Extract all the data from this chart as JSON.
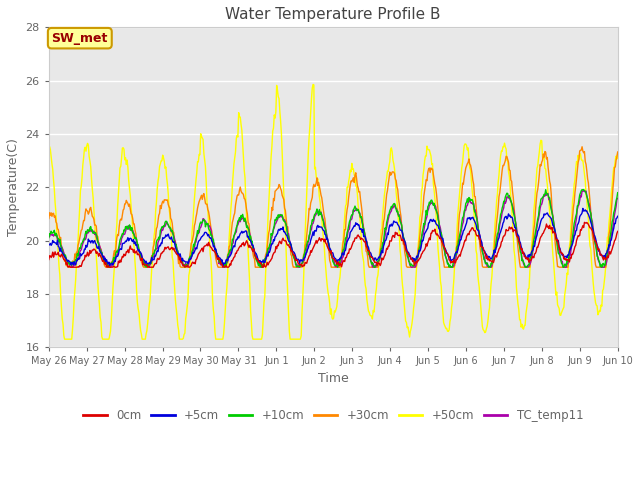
{
  "title": "Water Temperature Profile B",
  "xlabel": "Time",
  "ylabel": "Temperature(C)",
  "ylim": [
    16,
    28
  ],
  "yticks": [
    16,
    18,
    20,
    22,
    24,
    26,
    28
  ],
  "fig_bg_color": "#ffffff",
  "plot_bg_color": "#e8e8e8",
  "annotation_text": "SW_met",
  "annotation_box_color": "#ffff99",
  "annotation_text_color": "#990000",
  "annotation_edge_color": "#cc9900",
  "line_colors": {
    "0cm": "#dd0000",
    "+5cm": "#0000dd",
    "+10cm": "#00cc00",
    "+30cm": "#ff8800",
    "+50cm": "#ffff00",
    "TC_temp11": "#aa00aa"
  },
  "x_tick_labels": [
    "May 26",
    "May 27",
    "May 28",
    "May 29",
    "May 30",
    "May 31",
    "Jun 1",
    "Jun 2",
    "Jun 3",
    "Jun 4",
    "Jun 5",
    "Jun 6",
    "Jun 7",
    "Jun 8",
    "Jun 9",
    "Jun 10"
  ],
  "n_days": 15,
  "points_per_day": 48,
  "grid_color": "#ffffff",
  "tick_color": "#666666",
  "title_color": "#444444"
}
